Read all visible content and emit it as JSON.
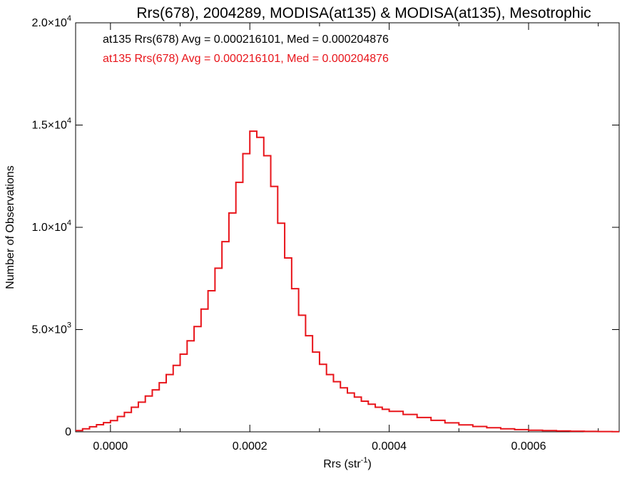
{
  "chart_data": {
    "type": "line",
    "style": "step-histogram",
    "title": "Rrs(678), 2004289, MODISA(at135) & MODISA(at135), Mesotrophic",
    "xlabel_base": "Rrs (str",
    "xlabel_sup": "-1",
    "xlabel_end": ")",
    "ylabel": "Number of Observations",
    "xlim": [
      -5e-05,
      0.00073
    ],
    "ylim": [
      0,
      20000
    ],
    "x_ticks": [
      {
        "value": 0.0,
        "label": "0.0000"
      },
      {
        "value": 0.0002,
        "label": "0.0002"
      },
      {
        "value": 0.0004,
        "label": "0.0004"
      },
      {
        "value": 0.0006,
        "label": "0.0006"
      }
    ],
    "y_ticks": [
      {
        "value": 0,
        "base": "0",
        "sup": ""
      },
      {
        "value": 5000,
        "base": "5.0×10",
        "sup": "3"
      },
      {
        "value": 10000,
        "base": "1.0×10",
        "sup": "4"
      },
      {
        "value": 15000,
        "base": "1.5×10",
        "sup": "4"
      },
      {
        "value": 20000,
        "base": "2.0×10",
        "sup": "4"
      }
    ],
    "annotations": [
      {
        "text": "at135 Rrs(678) Avg = 0.000216101, Med = 0.000204876",
        "color": "#000000"
      },
      {
        "text": "at135 Rrs(678) Avg = 0.000216101, Med = 0.000204876",
        "color": "#e8141a"
      }
    ],
    "series": [
      {
        "color": "#e8141a",
        "x": [
          -5e-05,
          -4e-05,
          -3e-05,
          -2e-05,
          -1e-05,
          0.0,
          1e-05,
          2e-05,
          3e-05,
          4e-05,
          5e-05,
          6e-05,
          7e-05,
          8e-05,
          9e-05,
          0.0001,
          0.00011,
          0.00012,
          0.00013,
          0.00014,
          0.00015,
          0.00016,
          0.00017,
          0.00018,
          0.00019,
          0.0002,
          0.00021,
          0.00022,
          0.00023,
          0.00024,
          0.00025,
          0.00026,
          0.00027,
          0.00028,
          0.00029,
          0.0003,
          0.00031,
          0.00032,
          0.00033,
          0.00034,
          0.00035,
          0.00036,
          0.00037,
          0.00038,
          0.00039,
          0.0004,
          0.00042,
          0.00044,
          0.00046,
          0.00048,
          0.0005,
          0.00052,
          0.00054,
          0.00056,
          0.00058,
          0.0006,
          0.00062,
          0.00064,
          0.00066,
          0.00068,
          0.0007,
          0.00072
        ],
        "y": [
          60,
          150,
          250,
          350,
          450,
          550,
          750,
          950,
          1200,
          1450,
          1750,
          2050,
          2400,
          2800,
          3250,
          3800,
          4450,
          5150,
          6000,
          6900,
          8000,
          9300,
          10700,
          12200,
          13600,
          14700,
          14400,
          13500,
          12000,
          10200,
          8500,
          7000,
          5700,
          4700,
          3900,
          3300,
          2800,
          2450,
          2150,
          1900,
          1700,
          1500,
          1350,
          1200,
          1100,
          1000,
          850,
          700,
          560,
          440,
          340,
          260,
          200,
          150,
          110,
          80,
          60,
          45,
          30,
          20,
          15,
          10
        ]
      }
    ]
  }
}
